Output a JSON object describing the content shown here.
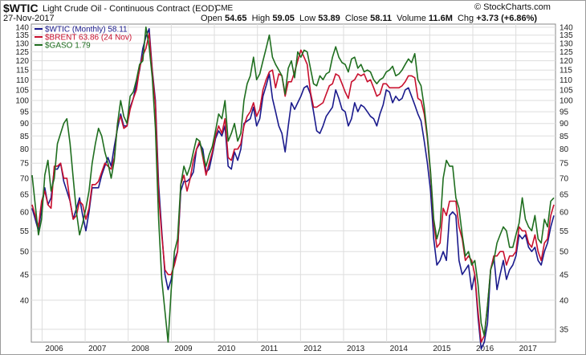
{
  "header": {
    "symbol": "$WTIC",
    "name": "Light Crude Oil - Continuous Contract (EOD)",
    "exchange": "CME",
    "copyright": "© StockCharts.com",
    "date": "27-Nov-2017",
    "open_label": "Open",
    "open": "54.65",
    "high_label": "High",
    "high": "59.05",
    "low_label": "Low",
    "low": "53.89",
    "close_label": "Close",
    "close": "58.11",
    "volume_label": "Volume",
    "volume": "11.6M",
    "chg_label": "Chg",
    "chg": "+3.73 (+6.86%)"
  },
  "colors": {
    "wtic": "#1a1a8c",
    "brent": "#c8102e",
    "gaso": "#1f6e1f",
    "grid": "#dddddd"
  },
  "chart_data": {
    "type": "line",
    "scale": "log",
    "ylim": [
      33,
      142
    ],
    "yticks_left": [
      40,
      45,
      50,
      55,
      60,
      65,
      70,
      75,
      80,
      85,
      90,
      95,
      100,
      105,
      110,
      115,
      120,
      125,
      130,
      135,
      140
    ],
    "yticks_right": [
      35,
      40,
      45,
      50,
      55,
      60,
      65,
      70,
      75,
      80,
      85,
      90,
      95,
      100,
      105,
      110,
      115,
      120,
      125,
      130,
      135,
      140
    ],
    "xticks": [
      "2006",
      "2007",
      "2008",
      "2009",
      "2010",
      "2011",
      "2012",
      "2013",
      "2014",
      "2015",
      "2016",
      "2017"
    ],
    "grid": true,
    "legend": "top-left",
    "x_start": 2005.75,
    "x_end": 2017.92,
    "series": [
      {
        "name": "$WTIC (Monthly) 58.11",
        "key": "wtic",
        "values": [
          61,
          58,
          55,
          61,
          67,
          62,
          64,
          73,
          73,
          75,
          69,
          66,
          63,
          58,
          61,
          64,
          59,
          55,
          60,
          67,
          67,
          67,
          71,
          74,
          77,
          74,
          81,
          88,
          94,
          89,
          89,
          97,
          101,
          108,
          115,
          127,
          134,
          139,
          115,
          100,
          68,
          55,
          45,
          42,
          44,
          48,
          50,
          66,
          69,
          69,
          70,
          72,
          80,
          82,
          80,
          72,
          73,
          78,
          84,
          87,
          85,
          89,
          74,
          73,
          79,
          76,
          80,
          90,
          91,
          92,
          97,
          89,
          92,
          102,
          107,
          113,
          101,
          95,
          89,
          86,
          79,
          89,
          99,
          96,
          99,
          102,
          106,
          107,
          103,
          95,
          87,
          86,
          89,
          93,
          95,
          97,
          105,
          101,
          96,
          95,
          89,
          92,
          99,
          95,
          98,
          97,
          95,
          93,
          92,
          89,
          94,
          98,
          105,
          104,
          99,
          102,
          100,
          101,
          105,
          106,
          102,
          98,
          94,
          91,
          83,
          75,
          66,
          53,
          47,
          48,
          50,
          48,
          59,
          60,
          59,
          48,
          45,
          46,
          47,
          42,
          45,
          37,
          32,
          33,
          36,
          46,
          49,
          42,
          45,
          48,
          44,
          46,
          47,
          49,
          54,
          53,
          54,
          51,
          50,
          51,
          48,
          47,
          50,
          52,
          56,
          59
        ]
      },
      {
        "name": "$BRENT 63.86 (24 Nov)",
        "key": "brent",
        "values": [
          62,
          59,
          56,
          63,
          66,
          62,
          61,
          74,
          74,
          75,
          70,
          70,
          63,
          58,
          59,
          63,
          62,
          58,
          61,
          68,
          68,
          69,
          72,
          75,
          74,
          73,
          77,
          90,
          93,
          88,
          89,
          96,
          101,
          105,
          116,
          123,
          127,
          136,
          114,
          98,
          65,
          54,
          46,
          45,
          45,
          47,
          50,
          68,
          71,
          66,
          70,
          76,
          80,
          83,
          77,
          71,
          75,
          79,
          85,
          89,
          86,
          92,
          77,
          76,
          80,
          80,
          82,
          89,
          93,
          95,
          99,
          93,
          96,
          105,
          110,
          114,
          115,
          106,
          113,
          112,
          102,
          109,
          109,
          114,
          120,
          126,
          122,
          118,
          104,
          97,
          97,
          98,
          99,
          103,
          107,
          108,
          113,
          112,
          108,
          104,
          101,
          109,
          110,
          113,
          112,
          113,
          109,
          110,
          106,
          102,
          103,
          108,
          108,
          106,
          106,
          106,
          106,
          107,
          109,
          112,
          112,
          111,
          101,
          100,
          94,
          84,
          71,
          57,
          51,
          52,
          61,
          59,
          63,
          63,
          63,
          56,
          53,
          48,
          49,
          48,
          45,
          38,
          33,
          34,
          39,
          46,
          49,
          49,
          50,
          50,
          47,
          49,
          49,
          50,
          56,
          55,
          55,
          52,
          51,
          54,
          50,
          48,
          52,
          53,
          59,
          62
        ]
      },
      {
        "name": "$GASO 1.79",
        "key": "gaso",
        "values": [
          71,
          62,
          54,
          58,
          71,
          76,
          66,
          70,
          82,
          86,
          90,
          92,
          82,
          70,
          60,
          54,
          57,
          61,
          66,
          75,
          82,
          88,
          85,
          79,
          75,
          70,
          76,
          90,
          100,
          93,
          90,
          102,
          104,
          110,
          118,
          120,
          140,
          128,
          111,
          88,
          58,
          44,
          38,
          33,
          42,
          50,
          53,
          68,
          74,
          71,
          74,
          79,
          84,
          83,
          78,
          74,
          78,
          81,
          87,
          94,
          92,
          100,
          83,
          86,
          90,
          83,
          86,
          100,
          108,
          112,
          122,
          110,
          113,
          120,
          127,
          135,
          122,
          118,
          115,
          112,
          103,
          116,
          120,
          111,
          125,
          122,
          126,
          125,
          116,
          108,
          107,
          112,
          110,
          113,
          114,
          122,
          128,
          122,
          119,
          118,
          114,
          121,
          122,
          116,
          118,
          114,
          115,
          114,
          110,
          108,
          110,
          111,
          114,
          115,
          117,
          112,
          113,
          115,
          118,
          121,
          119,
          124,
          110,
          107,
          97,
          85,
          72,
          58,
          53,
          56,
          70,
          76,
          74,
          74,
          64,
          61,
          54,
          49,
          50,
          47,
          48,
          43,
          36,
          34,
          39,
          46,
          48,
          52,
          54,
          56,
          55,
          51,
          51,
          54,
          57,
          64,
          58,
          56,
          55,
          59,
          53,
          52,
          58,
          56,
          63,
          64
        ]
      }
    ]
  }
}
